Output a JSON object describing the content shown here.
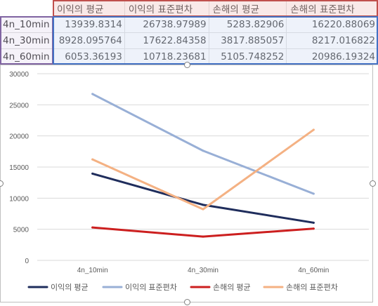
{
  "sheet": {
    "column_headers": [
      "이익의 평균",
      "이익의 표준편차",
      "손해의 평균",
      "손해의 표준편차"
    ],
    "rows": [
      {
        "label": "4n_10min",
        "cells": [
          "13939.8314",
          "26738.97989",
          "5283.82906",
          "16220.88069"
        ]
      },
      {
        "label": "4n_30min",
        "cells": [
          "8928.095764",
          "17622.84358",
          "3817.885057",
          "8217.016822"
        ]
      },
      {
        "label": "4n_60min",
        "cells": [
          "6053.36193",
          "10718.23681",
          "5105.748252",
          "20986.19324"
        ]
      }
    ]
  },
  "chart_data": {
    "type": "line",
    "categories": [
      "4n_10min",
      "4n_30min",
      "4n_60min"
    ],
    "series": [
      {
        "name": "이익의 평균",
        "color": "#1f2d5c",
        "values": [
          13939.8314,
          8928.095764,
          6053.36193
        ]
      },
      {
        "name": "이익의 표준편차",
        "color": "#98afd6",
        "values": [
          26738.97989,
          17622.84358,
          10718.23681
        ]
      },
      {
        "name": "손해의 평균",
        "color": "#cc1f1f",
        "values": [
          5283.82906,
          3817.885057,
          5105.748252
        ]
      },
      {
        "name": "손해의 표준편차",
        "color": "#f4b183",
        "values": [
          16220.88069,
          8217.016822,
          20986.19324
        ]
      }
    ],
    "ylim": [
      0,
      30000
    ],
    "yticks": [
      "0",
      "5000",
      "10000",
      "15000",
      "20000",
      "25000",
      "30000"
    ],
    "grid": true,
    "legend_position": "bottom"
  },
  "colors": {
    "gridline": "#d9d9d9",
    "axis_text": "#595959",
    "selection_red": "#c0504d",
    "selection_purple": "#8064a2",
    "selection_blue": "#4472c4"
  }
}
